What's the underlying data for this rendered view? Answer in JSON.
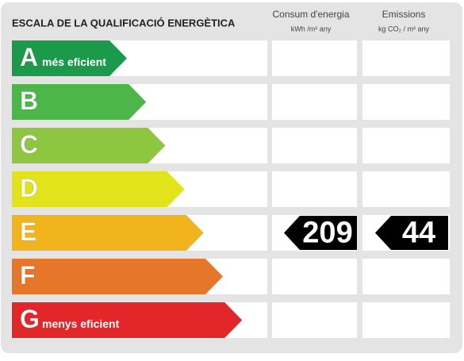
{
  "header": {
    "title": "ESCALA DE LA QUALIFICACIÓ ENERGÈTICA",
    "columns": [
      {
        "title": "Consum d'energia",
        "unit": "kWh /m² any"
      },
      {
        "title": "Emissions",
        "unit": "kg CO₂ / m² any"
      }
    ]
  },
  "rows": [
    {
      "letter": "A",
      "label": "més eficient",
      "color": "#1a9a4a"
    },
    {
      "letter": "B",
      "color": "#4cb748"
    },
    {
      "letter": "C",
      "color": "#8dc63f"
    },
    {
      "letter": "D",
      "color": "#e3e31c"
    },
    {
      "letter": "E",
      "color": "#f2b41c",
      "consumption": 209,
      "emissions": 44
    },
    {
      "letter": "F",
      "color": "#e5762a"
    },
    {
      "letter": "G",
      "label": "menys eficient",
      "color": "#e2262a"
    }
  ]
}
